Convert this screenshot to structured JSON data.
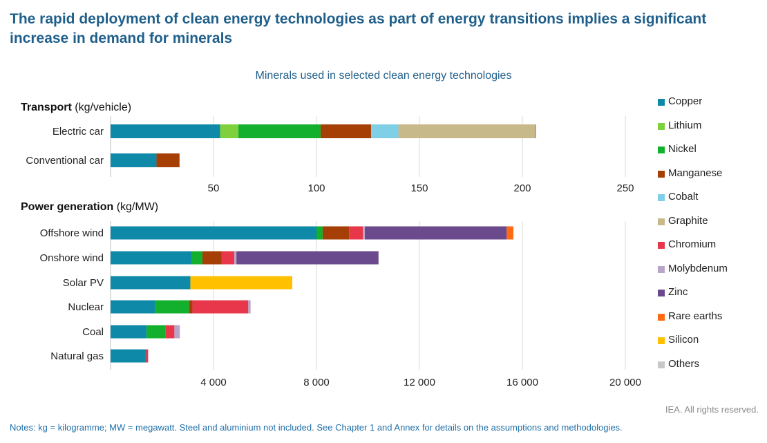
{
  "title": "The rapid deployment of clean energy technologies as part of energy transitions implies a significant increase in demand for minerals",
  "chart_data": [
    {
      "type": "bar",
      "orientation": "horizontal-stacked",
      "title": "Minerals used in selected clean energy technologies",
      "panel_title": "Transport",
      "panel_unit": "(kg/vehicle)",
      "categories": [
        "Electric car",
        "Conventional car"
      ],
      "xlim": [
        0,
        250
      ],
      "xticks": [
        "50",
        "100",
        "150",
        "200",
        "250"
      ],
      "xtick_values": [
        50,
        100,
        150,
        200,
        250
      ],
      "series": [
        {
          "name": "Copper",
          "values": [
            53.2,
            22.3
          ]
        },
        {
          "name": "Lithium",
          "values": [
            8.9,
            0
          ]
        },
        {
          "name": "Nickel",
          "values": [
            39.9,
            0
          ]
        },
        {
          "name": "Manganese",
          "values": [
            24.5,
            11.2
          ]
        },
        {
          "name": "Cobalt",
          "values": [
            13.3,
            0
          ]
        },
        {
          "name": "Graphite",
          "values": [
            66.3,
            0
          ]
        },
        {
          "name": "Rare earths",
          "values": [
            0.5,
            0
          ]
        }
      ]
    },
    {
      "type": "bar",
      "orientation": "horizontal-stacked",
      "panel_title": "Power generation",
      "panel_unit": "(kg/MW)",
      "categories": [
        "Offshore wind",
        "Onshore wind",
        "Solar PV",
        "Nuclear",
        "Coal",
        "Natural gas"
      ],
      "xlim": [
        0,
        20000
      ],
      "xticks": [
        "4 000",
        "8 000",
        "12 000",
        "16 000",
        "20 000"
      ],
      "xtick_values": [
        4000,
        8000,
        12000,
        16000,
        20000
      ],
      "series": [
        {
          "name": "Copper",
          "values": [
            8000,
            3140,
            3100,
            1720,
            1400,
            1380
          ]
        },
        {
          "name": "Nickel",
          "values": [
            240,
            430,
            0,
            1330,
            730,
            0
          ]
        },
        {
          "name": "Manganese",
          "values": [
            1030,
            750,
            0,
            130,
            0,
            0
          ]
        },
        {
          "name": "Chromium",
          "values": [
            530,
            490,
            0,
            2170,
            350,
            80
          ]
        },
        {
          "name": "Molybdenum",
          "values": [
            80,
            80,
            0,
            90,
            210,
            0
          ]
        },
        {
          "name": "Zinc",
          "values": [
            5510,
            5520,
            0,
            0,
            0,
            0
          ]
        },
        {
          "name": "Rare earths",
          "values": [
            260,
            0,
            0,
            0,
            0,
            0
          ]
        },
        {
          "name": "Silicon",
          "values": [
            0,
            0,
            3960,
            0,
            0,
            0
          ]
        }
      ]
    }
  ],
  "legend": [
    {
      "name": "Copper",
      "color": "#0e8aa8"
    },
    {
      "name": "Lithium",
      "color": "#7fd13b"
    },
    {
      "name": "Nickel",
      "color": "#13b02e"
    },
    {
      "name": "Manganese",
      "color": "#a63f06"
    },
    {
      "name": "Cobalt",
      "color": "#7fd0e6"
    },
    {
      "name": "Graphite",
      "color": "#c8b98a"
    },
    {
      "name": "Chromium",
      "color": "#e8374a"
    },
    {
      "name": "Molybdenum",
      "color": "#b8a5c8"
    },
    {
      "name": "Zinc",
      "color": "#6a4a8c"
    },
    {
      "name": "Rare earths",
      "color": "#ff6a13"
    },
    {
      "name": "Silicon",
      "color": "#ffc000"
    },
    {
      "name": "Others",
      "color": "#c8c8c8"
    }
  ],
  "credit": "IEA. All rights reserved.",
  "notes": "Notes: kg = kilogramme; MW = megawatt. Steel and aluminium not included. See Chapter 1 and Annex for details on the assumptions and methodologies."
}
